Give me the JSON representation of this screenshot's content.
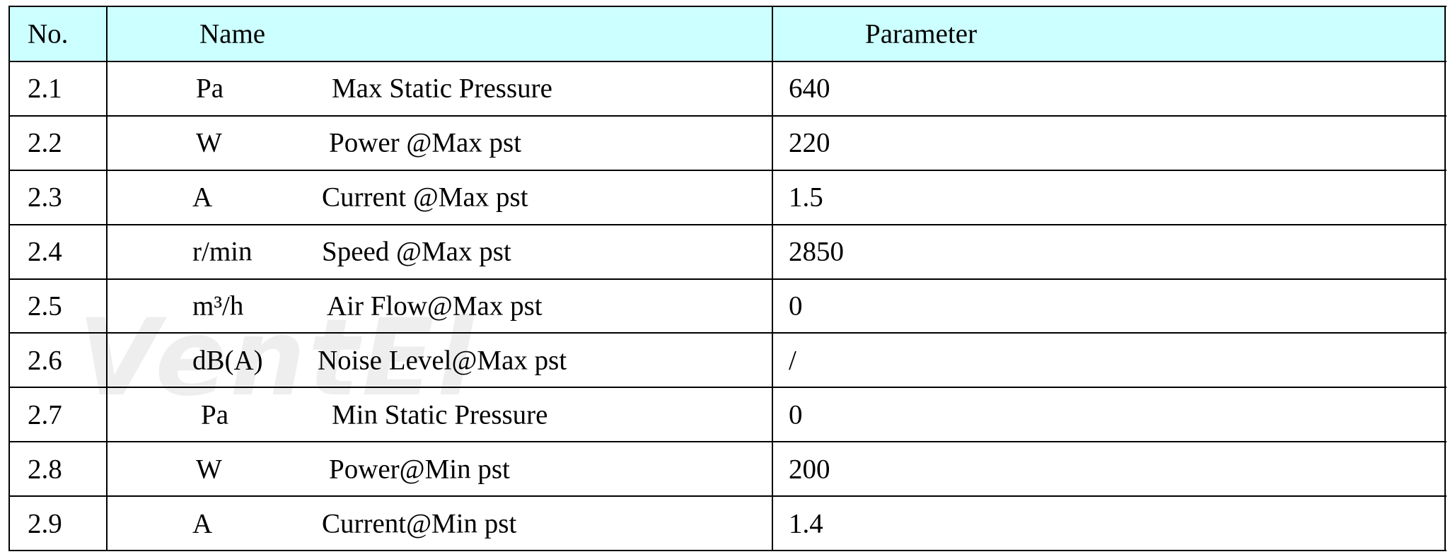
{
  "table": {
    "header": [
      "No.",
      "Name",
      "Parameter"
    ],
    "rows": [
      {
        "no": "2.1",
        "unit": "Pa",
        "name": "Max Static Pressure",
        "parameter": "640"
      },
      {
        "no": "2.2",
        "unit": "W",
        "name": "Power @Max pst",
        "parameter": "220"
      },
      {
        "no": "2.3",
        "unit": "A",
        "name": "Current @Max pst",
        "parameter": "1.5"
      },
      {
        "no": "2.4",
        "unit": "r/min",
        "name": "Speed @Max pst",
        "parameter": "2850"
      },
      {
        "no": "2.5",
        "unit": "m³/h",
        "name": "Air Flow@Max pst",
        "parameter": "0"
      },
      {
        "no": "2.6",
        "unit": "dB(A)",
        "name": "Noise Level@Max pst",
        "parameter": "/"
      },
      {
        "no": "2.7",
        "unit": "Pa",
        "name": "Min Static Pressure",
        "parameter": "0"
      },
      {
        "no": "2.8",
        "unit": "W",
        "name": "Power@Min pst",
        "parameter": "200"
      },
      {
        "no": "2.9",
        "unit": "A",
        "name": "Current@Min pst",
        "parameter": "1.4"
      }
    ]
  },
  "watermark": "VentEl"
}
